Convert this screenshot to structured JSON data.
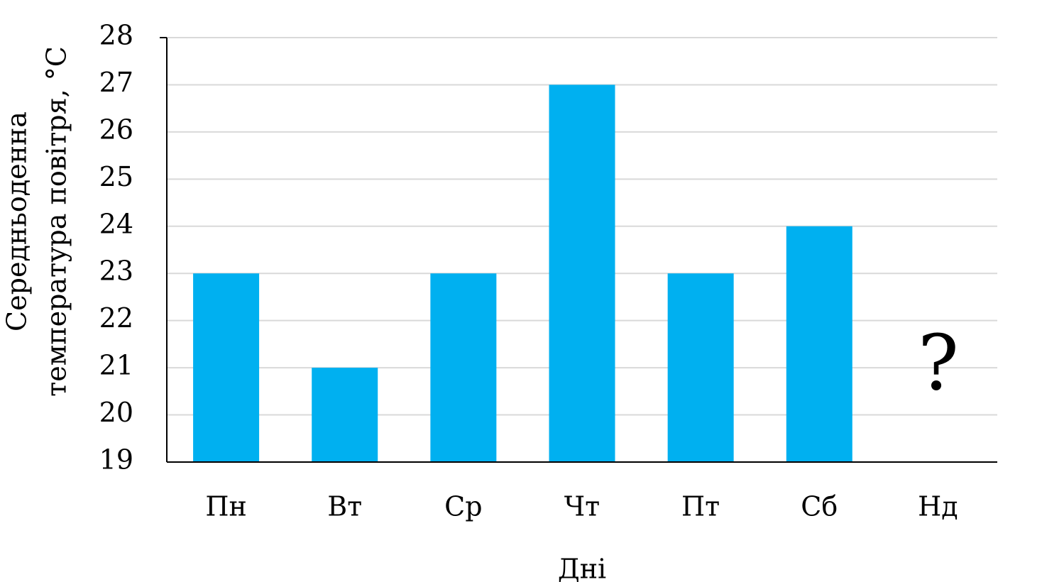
{
  "chart_data": {
    "type": "bar",
    "categories": [
      "Пн",
      "Вт",
      "Ср",
      "Чт",
      "Пт",
      "Сб",
      "Нд"
    ],
    "values": [
      23,
      21,
      23,
      27,
      23,
      24,
      null
    ],
    "title": "",
    "xlabel": "Дні",
    "ylabel": [
      "Середньоденна",
      "температура повітря, °С"
    ],
    "ylim": [
      19,
      28
    ],
    "yticks": [
      "19",
      "20",
      "21",
      "22",
      "23",
      "24",
      "25",
      "26",
      "27",
      "28"
    ],
    "grid": true,
    "annotation": "?",
    "bar_color": "#00b0f0"
  }
}
